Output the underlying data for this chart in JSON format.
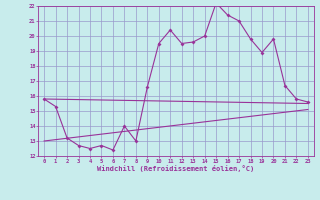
{
  "background_color": "#c8ecec",
  "grid_color": "#9999cc",
  "line_color": "#993399",
  "xlim": [
    -0.5,
    23.5
  ],
  "ylim": [
    12,
    22
  ],
  "xlabel": "Windchill (Refroidissement éolien,°C)",
  "xticks": [
    0,
    1,
    2,
    3,
    4,
    5,
    6,
    7,
    8,
    9,
    10,
    11,
    12,
    13,
    14,
    15,
    16,
    17,
    18,
    19,
    20,
    21,
    22,
    23
  ],
  "yticks": [
    12,
    13,
    14,
    15,
    16,
    17,
    18,
    19,
    20,
    21,
    22
  ],
  "series1_x": [
    0,
    1,
    2,
    3,
    4,
    5,
    6,
    7,
    8,
    9,
    10,
    11,
    12,
    13,
    14,
    15,
    16,
    17,
    18,
    19,
    20,
    21,
    22,
    23
  ],
  "series1_y": [
    15.8,
    15.3,
    13.2,
    12.7,
    12.5,
    12.7,
    12.4,
    14.0,
    13.0,
    16.6,
    19.5,
    20.4,
    19.5,
    19.6,
    20.0,
    22.2,
    21.4,
    21.0,
    19.8,
    18.9,
    19.8,
    16.7,
    15.8,
    15.6
  ],
  "series2_x": [
    0,
    23
  ],
  "series2_y": [
    15.8,
    15.5
  ],
  "series3_x": [
    0,
    23
  ],
  "series3_y": [
    13.0,
    15.1
  ],
  "marker": "D",
  "markersize": 2.0,
  "linewidth": 0.8,
  "tick_fontsize": 4.0,
  "xlabel_fontsize": 5.0
}
